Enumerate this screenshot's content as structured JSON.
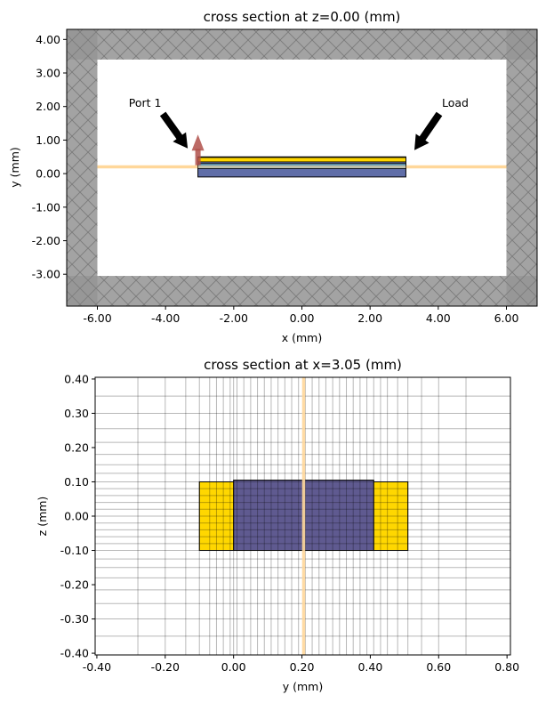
{
  "chart_data": [
    {
      "type": "cross-section",
      "title": "cross section at z=0.00 (mm)",
      "xlabel": "x (mm)",
      "ylabel": "y (mm)",
      "xlim": [
        -6.9,
        6.9
      ],
      "ylim": [
        -3.95,
        4.3
      ],
      "xticks": [
        -6,
        -4,
        -2,
        0,
        2,
        4,
        6
      ],
      "xtick_labels": [
        "-6.00",
        "-4.00",
        "-2.00",
        "0.00",
        "2.00",
        "4.00",
        "6.00"
      ],
      "yticks": [
        4,
        3,
        2,
        1,
        0,
        -1,
        -2,
        -3
      ],
      "ytick_labels": [
        "4.00",
        "3.00",
        "2.00",
        "1.00",
        "0.00",
        "-1.00",
        "-2.00",
        "-3.00"
      ],
      "boundary": {
        "inner_x": [
          -6.0,
          6.0
        ],
        "inner_y": [
          -3.05,
          3.4
        ],
        "color": "#a0a0a0"
      },
      "substrate": {
        "x": [
          -3.05,
          3.05
        ],
        "y": [
          -0.1,
          0.5
        ],
        "color": "#606ea8"
      },
      "strips": [
        {
          "x": [
            -3.05,
            3.05
          ],
          "y": [
            0.15,
            0.3
          ],
          "color": "#6aa0b8"
        },
        {
          "x": [
            -3.05,
            3.05
          ],
          "y": [
            0.35,
            0.48
          ],
          "color": "#ffd700"
        }
      ],
      "feed_line": {
        "y": 0.2,
        "x": [
          -6.0,
          6.0
        ],
        "color": "#ffd79a"
      },
      "port_arrow": {
        "x": -3.05,
        "y0": 0.25,
        "y1": 0.95,
        "color": "#b0504a"
      },
      "annotations": [
        {
          "text": "Port 1",
          "text_x": -4.6,
          "text_y": 2.1,
          "tip_x": -3.35,
          "tip_y": 0.75
        },
        {
          "text": "Load",
          "text_x": 4.5,
          "text_y": 2.1,
          "tip_x": 3.3,
          "tip_y": 0.7
        }
      ]
    },
    {
      "type": "cross-section",
      "title": "cross section at x=3.05 (mm)",
      "xlabel": "y (mm)",
      "ylabel": "z (mm)",
      "xlim": [
        -0.405,
        0.81
      ],
      "ylim": [
        -0.405,
        0.405
      ],
      "xticks": [
        -0.4,
        -0.2,
        0,
        0.2,
        0.4,
        0.6,
        0.8
      ],
      "xtick_labels": [
        "-0.40",
        "-0.20",
        "0.00",
        "0.20",
        "0.40",
        "0.60",
        "0.80"
      ],
      "yticks": [
        0.4,
        0.3,
        0.2,
        0.1,
        0,
        -0.1,
        -0.2,
        -0.3,
        -0.4
      ],
      "ytick_labels": [
        "0.40",
        "0.30",
        "0.20",
        "0.10",
        "0.00",
        "-0.10",
        "-0.20",
        "-0.30",
        "-0.40"
      ],
      "conductor": {
        "y": [
          -0.1,
          0.51
        ],
        "z": [
          -0.1,
          0.1
        ],
        "color": "#ffd700"
      },
      "substrate": {
        "y": [
          0.0,
          0.41
        ],
        "z": [
          -0.1,
          0.105
        ],
        "color": "#5f5a90"
      },
      "source_line": {
        "y": 0.205,
        "color": "#ffd79a"
      },
      "grid_y": [
        -0.405,
        -0.28,
        -0.2,
        -0.14,
        -0.1,
        -0.07,
        -0.05,
        -0.03,
        -0.01,
        0.0,
        0.01,
        0.03,
        0.05,
        0.07,
        0.09,
        0.11,
        0.13,
        0.15,
        0.17,
        0.19,
        0.21,
        0.23,
        0.25,
        0.27,
        0.29,
        0.31,
        0.33,
        0.35,
        0.37,
        0.39,
        0.41,
        0.43,
        0.45,
        0.48,
        0.51,
        0.55,
        0.6,
        0.68,
        0.81
      ],
      "grid_z": [
        -0.405,
        -0.35,
        -0.3,
        -0.255,
        -0.215,
        -0.18,
        -0.15,
        -0.125,
        -0.1,
        -0.08,
        -0.06,
        -0.04,
        -0.02,
        0.0,
        0.02,
        0.04,
        0.06,
        0.08,
        0.1,
        0.125,
        0.15,
        0.18,
        0.215,
        0.255,
        0.3,
        0.35,
        0.405
      ]
    }
  ]
}
